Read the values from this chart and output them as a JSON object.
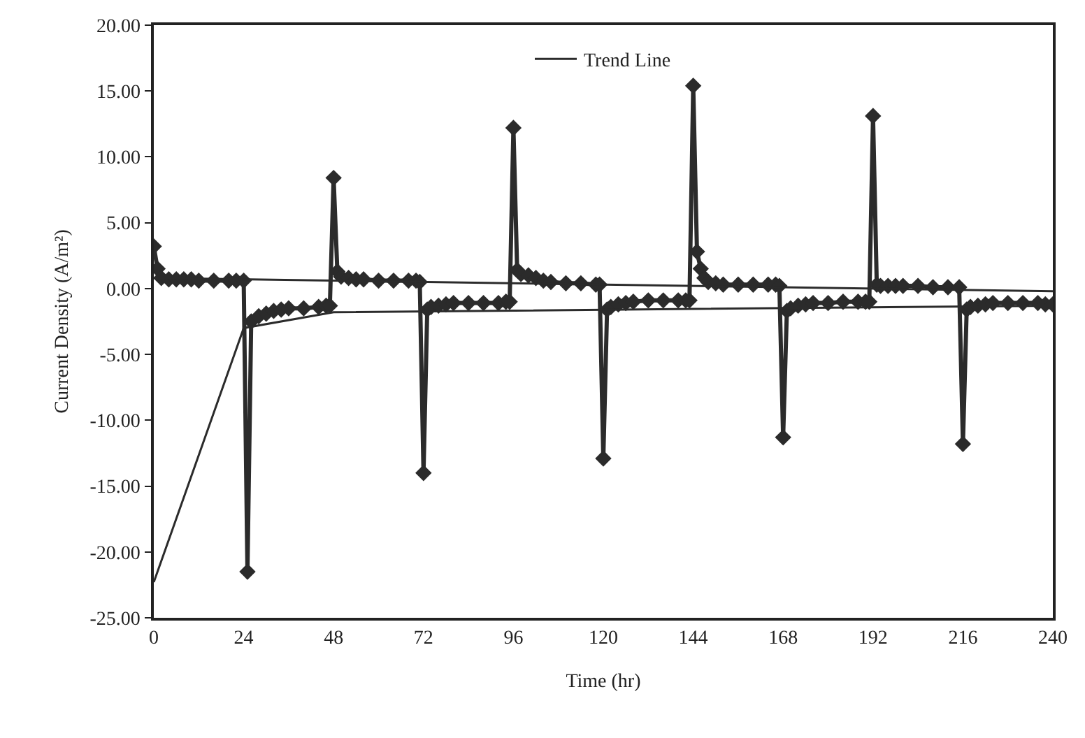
{
  "chart_data": {
    "type": "line",
    "xlabel": "Time (hr)",
    "ylabel": "Current Density (A/m²)",
    "xlim": [
      0,
      240
    ],
    "xticks": [
      0,
      24,
      48,
      72,
      96,
      120,
      144,
      168,
      192,
      216,
      240
    ],
    "ylim": [
      -25,
      20
    ],
    "yticks": [
      {
        "value": 20,
        "label": "20.00"
      },
      {
        "value": 15,
        "label": "15.00"
      },
      {
        "value": 10,
        "label": "10.00"
      },
      {
        "value": 5,
        "label": "5.00"
      },
      {
        "value": 0,
        "label": "0.00"
      },
      {
        "value": -5,
        "label": "-5.00"
      },
      {
        "value": -10,
        "label": "-10.00"
      },
      {
        "value": -15,
        "label": "-15.00"
      },
      {
        "value": -20,
        "label": "-20.00"
      },
      {
        "value": -25,
        "label": "-25.00"
      }
    ],
    "grid": false,
    "legend": "top",
    "marker": "diamond",
    "line_style": "solid",
    "series": [
      {
        "color": "#2b2b2b",
        "x": [
          0,
          1,
          2,
          4,
          6,
          8,
          10,
          12,
          16,
          20,
          22,
          24,
          25,
          26,
          28,
          30,
          32,
          34,
          36,
          40,
          44,
          46,
          47,
          48,
          49,
          50,
          52,
          54,
          56,
          60,
          64,
          68,
          70,
          71,
          72,
          73,
          74,
          76,
          78,
          80,
          84,
          88,
          92,
          94,
          95,
          96,
          97,
          98,
          100,
          102,
          104,
          106,
          110,
          114,
          118,
          119,
          120,
          121,
          122,
          124,
          126,
          128,
          132,
          136,
          140,
          142,
          143,
          144,
          145,
          146,
          147,
          148,
          150,
          152,
          156,
          160,
          164,
          166,
          167,
          168,
          169,
          170,
          172,
          174,
          176,
          180,
          184,
          188,
          190,
          191,
          192,
          193,
          194,
          196,
          198,
          200,
          204,
          208,
          212,
          215,
          216,
          217,
          218,
          220,
          222,
          224,
          228,
          232,
          236,
          238,
          240
        ],
        "values": [
          3.2,
          1.5,
          0.8,
          0.7,
          0.7,
          0.7,
          0.7,
          0.6,
          0.6,
          0.6,
          0.6,
          0.6,
          -21.5,
          -2.5,
          -2.1,
          -1.9,
          -1.7,
          -1.6,
          -1.5,
          -1.5,
          -1.4,
          -1.3,
          -1.3,
          8.4,
          1.3,
          0.9,
          0.8,
          0.7,
          0.7,
          0.6,
          0.6,
          0.6,
          0.6,
          0.5,
          -14.0,
          -1.6,
          -1.4,
          -1.3,
          -1.2,
          -1.1,
          -1.1,
          -1.1,
          -1.1,
          -1.0,
          -1.0,
          12.2,
          1.4,
          1.1,
          1.0,
          0.8,
          0.6,
          0.5,
          0.4,
          0.4,
          0.3,
          0.3,
          -12.9,
          -1.6,
          -1.4,
          -1.2,
          -1.1,
          -1.0,
          -0.9,
          -0.9,
          -0.9,
          -0.9,
          -0.9,
          15.4,
          2.8,
          1.5,
          0.8,
          0.5,
          0.4,
          0.3,
          0.3,
          0.3,
          0.3,
          0.3,
          0.2,
          -11.3,
          -1.7,
          -1.5,
          -1.3,
          -1.2,
          -1.1,
          -1.1,
          -1.0,
          -1.0,
          -1.0,
          -1.0,
          13.1,
          0.3,
          0.2,
          0.2,
          0.2,
          0.2,
          0.2,
          0.1,
          0.1,
          0.1,
          -11.8,
          -1.6,
          -1.4,
          -1.3,
          -1.2,
          -1.1,
          -1.1,
          -1.1,
          -1.1,
          -1.2,
          -1.2
        ]
      },
      {
        "name": "Trend Line",
        "color": "#2b2b2b",
        "marker": "none",
        "x": [
          0,
          240
        ],
        "values": [
          0.8,
          -0.2
        ]
      },
      {
        "color": "#2b2b2b",
        "marker": "none",
        "x": [
          0,
          24,
          48,
          240
        ],
        "values": [
          -22.3,
          -3.0,
          -1.8,
          -1.3
        ]
      }
    ]
  }
}
